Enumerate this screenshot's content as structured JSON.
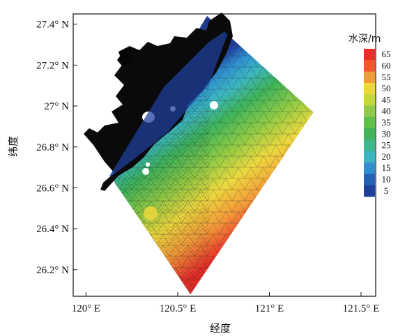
{
  "chart_data": {
    "type": "heatmap",
    "xlabel": "经度",
    "ylabel": "纬度",
    "x_ticks": [
      "120° E",
      "120.5° E",
      "121° E",
      "121.5° E"
    ],
    "x_tick_values": [
      120.0,
      120.5,
      121.0,
      121.5
    ],
    "y_ticks": [
      "26.2° N",
      "26.4° N",
      "26.6° N",
      "26.8° N",
      "27° N",
      "27.2° N",
      "27.4° N"
    ],
    "y_tick_values": [
      26.2,
      26.4,
      26.6,
      26.8,
      27.0,
      27.2,
      27.4
    ],
    "xlim": [
      119.93,
      121.58
    ],
    "ylim": [
      26.07,
      27.45
    ],
    "colorbar": {
      "title": "水深/m",
      "labels": [
        "65",
        "60",
        "55",
        "50",
        "45",
        "40",
        "35",
        "30",
        "25",
        "20",
        "15",
        "10",
        "5"
      ],
      "colors": [
        "#e8302a",
        "#ee5a2c",
        "#f39a3a",
        "#ecd83e",
        "#c3d63f",
        "#8fcb45",
        "#5fc04a",
        "#3fb45a",
        "#3bb88d",
        "#3bb6c0",
        "#2f8fd0",
        "#2561b8",
        "#1f3f9c"
      ]
    },
    "domain_corners": [
      {
        "lon": 120.66,
        "lat": 27.44
      },
      {
        "lon": 121.24,
        "lat": 26.97
      },
      {
        "lon": 120.57,
        "lat": 26.08
      },
      {
        "lon": 120.13,
        "lat": 26.66
      }
    ],
    "grid": false
  }
}
